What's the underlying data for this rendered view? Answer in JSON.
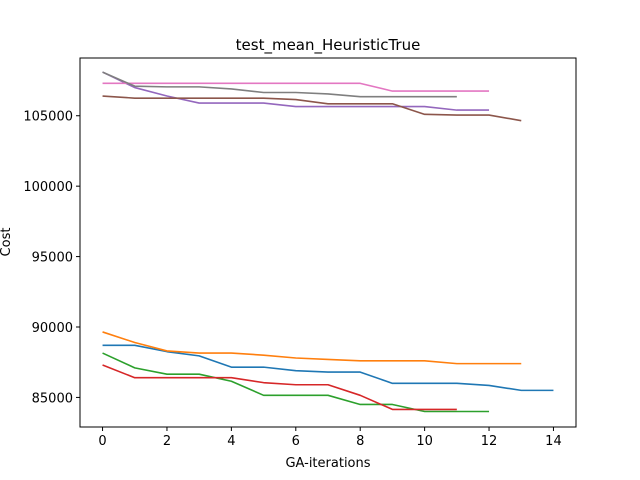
{
  "chart_data": {
    "type": "line",
    "title": "test_mean_HeuristicTrue",
    "xlabel": "GA-iterations",
    "ylabel": "Cost",
    "xlim": [
      -0.7,
      14.7
    ],
    "ylim": [
      82900,
      109100
    ],
    "xticks": [
      0,
      2,
      4,
      6,
      8,
      10,
      12,
      14
    ],
    "yticks": [
      85000,
      90000,
      95000,
      100000,
      105000
    ],
    "grid": false,
    "legend": "none",
    "series": [
      {
        "color": "#1f77b4",
        "x": [
          0,
          1,
          2,
          3,
          4,
          5,
          6,
          7,
          8,
          9,
          10,
          11,
          12,
          13,
          14
        ],
        "y": [
          88700,
          88700,
          88250,
          87950,
          87150,
          87150,
          86900,
          86800,
          86800,
          86000,
          86000,
          86000,
          85850,
          85500,
          85500
        ]
      },
      {
        "color": "#ff7f0e",
        "x": [
          0,
          1,
          2,
          3,
          4,
          5,
          6,
          7,
          8,
          9,
          10,
          11,
          12,
          13
        ],
        "y": [
          89650,
          88900,
          88300,
          88150,
          88150,
          88000,
          87800,
          87700,
          87600,
          87600,
          87600,
          87400,
          87400,
          87400
        ]
      },
      {
        "color": "#2ca02c",
        "x": [
          0,
          1,
          2,
          3,
          4,
          5,
          6,
          7,
          8,
          9,
          10,
          11,
          12
        ],
        "y": [
          88150,
          87100,
          86650,
          86650,
          86150,
          85150,
          85150,
          85150,
          84500,
          84500,
          84000,
          84000,
          84000
        ]
      },
      {
        "color": "#d62728",
        "x": [
          0,
          1,
          2,
          3,
          4,
          5,
          6,
          7,
          8,
          9,
          10,
          11
        ],
        "y": [
          87300,
          86400,
          86400,
          86400,
          86400,
          86050,
          85900,
          85900,
          85150,
          84150,
          84150,
          84150
        ]
      },
      {
        "color": "#9467bd",
        "x": [
          0,
          1,
          2,
          3,
          4,
          5,
          6,
          7,
          8,
          9,
          10,
          11,
          12
        ],
        "y": [
          108100,
          107000,
          106400,
          105900,
          105900,
          105900,
          105650,
          105650,
          105650,
          105650,
          105650,
          105400,
          105400
        ]
      },
      {
        "color": "#8c564b",
        "x": [
          0,
          1,
          2,
          3,
          4,
          5,
          6,
          7,
          8,
          9,
          10,
          11,
          12,
          13
        ],
        "y": [
          106400,
          106250,
          106250,
          106250,
          106250,
          106250,
          106150,
          105850,
          105850,
          105850,
          105100,
          105050,
          105050,
          104650
        ]
      },
      {
        "color": "#e377c2",
        "x": [
          0,
          1,
          2,
          3,
          4,
          5,
          6,
          7,
          8,
          9,
          10,
          11,
          12
        ],
        "y": [
          107300,
          107300,
          107300,
          107300,
          107300,
          107300,
          107300,
          107300,
          107300,
          106750,
          106750,
          106750,
          106750
        ]
      },
      {
        "color": "#7f7f7f",
        "x": [
          0,
          1,
          2,
          3,
          4,
          5,
          6,
          7,
          8,
          9,
          10,
          11
        ],
        "y": [
          108100,
          107100,
          107050,
          107050,
          106900,
          106650,
          106650,
          106550,
          106350,
          106350,
          106350,
          106350
        ]
      }
    ]
  }
}
